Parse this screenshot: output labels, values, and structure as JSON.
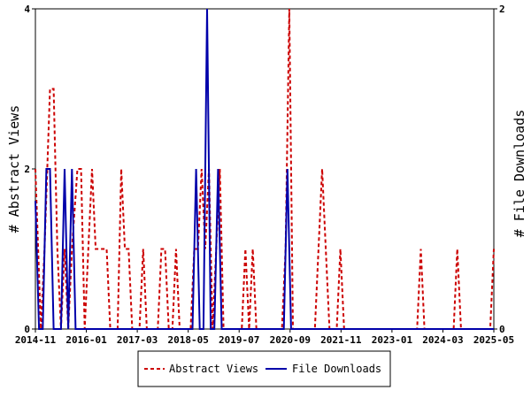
{
  "chart_data": {
    "type": "line",
    "y_left_label": "# Abstract Views",
    "y_right_label": "# File Downloads",
    "y_left_ticks": [
      "0",
      "2",
      "4"
    ],
    "y_right_ticks": [
      "0",
      "2"
    ],
    "ylim_left": [
      0,
      4
    ],
    "ylim_right": [
      0,
      2
    ],
    "x_ticks": [
      "2014-11",
      "2016-01",
      "2017-03",
      "2018-05",
      "2019-07",
      "2020-09",
      "2021-11",
      "2023-01",
      "2024-03",
      "2025-05"
    ],
    "legend_placement": "bottom-center",
    "series": [
      {
        "name": "Abstract Views",
        "axis": "left",
        "color": "#cc0000",
        "style": "dashed",
        "points": [
          [
            0,
            2
          ],
          [
            3,
            0
          ],
          [
            5,
            1
          ],
          [
            8,
            3
          ],
          [
            10,
            3
          ],
          [
            12,
            1
          ],
          [
            14,
            0
          ],
          [
            16,
            1
          ],
          [
            18,
            0
          ],
          [
            20,
            1
          ],
          [
            23,
            2
          ],
          [
            25,
            2
          ],
          [
            27,
            0
          ],
          [
            29,
            1
          ],
          [
            31,
            2
          ],
          [
            33,
            1
          ],
          [
            35,
            1
          ],
          [
            37,
            1
          ],
          [
            39,
            1
          ],
          [
            41,
            0
          ],
          [
            43,
            0
          ],
          [
            45,
            0
          ],
          [
            47,
            2
          ],
          [
            49,
            1
          ],
          [
            51,
            1
          ],
          [
            53,
            0
          ],
          [
            55,
            0
          ],
          [
            57,
            0
          ],
          [
            59,
            1
          ],
          [
            61,
            0
          ],
          [
            63,
            0
          ],
          [
            65,
            0
          ],
          [
            67,
            0
          ],
          [
            69,
            1
          ],
          [
            71,
            1
          ],
          [
            73,
            0
          ],
          [
            75,
            0
          ],
          [
            77,
            1
          ],
          [
            79,
            0
          ],
          [
            81,
            0
          ],
          [
            83,
            0
          ],
          [
            85,
            0
          ],
          [
            87,
            1
          ],
          [
            89,
            1
          ],
          [
            91,
            2
          ],
          [
            93,
            1
          ],
          [
            95,
            2
          ],
          [
            97,
            0
          ],
          [
            99,
            1
          ],
          [
            101,
            2
          ],
          [
            103,
            0
          ],
          [
            105,
            0
          ],
          [
            107,
            0
          ],
          [
            109,
            0
          ],
          [
            111,
            0
          ],
          [
            113,
            0
          ],
          [
            115,
            1
          ],
          [
            117,
            0
          ],
          [
            119,
            1
          ],
          [
            121,
            0
          ],
          [
            123,
            0
          ],
          [
            125,
            0
          ],
          [
            127,
            0
          ],
          [
            129,
            0
          ],
          [
            131,
            0
          ],
          [
            133,
            0
          ],
          [
            135,
            0
          ],
          [
            137,
            1
          ],
          [
            139,
            4
          ],
          [
            141,
            0
          ],
          [
            143,
            0
          ],
          [
            145,
            0
          ],
          [
            147,
            0
          ],
          [
            149,
            0
          ],
          [
            151,
            0
          ],
          [
            153,
            0
          ],
          [
            155,
            1
          ],
          [
            157,
            2
          ],
          [
            159,
            1
          ],
          [
            161,
            0
          ],
          [
            163,
            0
          ],
          [
            165,
            0
          ],
          [
            167,
            1
          ],
          [
            169,
            0
          ],
          [
            171,
            0
          ],
          [
            173,
            0
          ],
          [
            175,
            0
          ],
          [
            177,
            0
          ],
          [
            179,
            0
          ],
          [
            181,
            0
          ],
          [
            183,
            0
          ],
          [
            185,
            0
          ],
          [
            187,
            0
          ],
          [
            189,
            0
          ],
          [
            191,
            0
          ],
          [
            193,
            0
          ],
          [
            195,
            0
          ],
          [
            197,
            0
          ],
          [
            199,
            0
          ],
          [
            201,
            0
          ],
          [
            203,
            0
          ],
          [
            205,
            0
          ],
          [
            207,
            0
          ],
          [
            209,
            0
          ],
          [
            211,
            1
          ],
          [
            213,
            0
          ],
          [
            215,
            0
          ],
          [
            217,
            0
          ],
          [
            219,
            0
          ],
          [
            221,
            0
          ],
          [
            223,
            0
          ],
          [
            225,
            0
          ],
          [
            227,
            0
          ],
          [
            229,
            0
          ],
          [
            231,
            1
          ],
          [
            233,
            0
          ],
          [
            235,
            0
          ],
          [
            237,
            0
          ],
          [
            239,
            0
          ],
          [
            241,
            0
          ],
          [
            243,
            0
          ],
          [
            245,
            0
          ],
          [
            247,
            0
          ],
          [
            249,
            0
          ],
          [
            251,
            1
          ]
        ]
      },
      {
        "name": "File Downloads",
        "axis": "right",
        "color": "#0000aa",
        "style": "solid",
        "points": [
          [
            0,
            0.8
          ],
          [
            2,
            0
          ],
          [
            4,
            0
          ],
          [
            6,
            1
          ],
          [
            8,
            1
          ],
          [
            10,
            0
          ],
          [
            12,
            0
          ],
          [
            14,
            0
          ],
          [
            16,
            1
          ],
          [
            18,
            0
          ],
          [
            20,
            1
          ],
          [
            22,
            0
          ],
          [
            24,
            0
          ],
          [
            26,
            0
          ],
          [
            28,
            0
          ],
          [
            30,
            0
          ],
          [
            32,
            0
          ],
          [
            34,
            0
          ],
          [
            36,
            0
          ],
          [
            38,
            0
          ],
          [
            40,
            0
          ],
          [
            42,
            0
          ],
          [
            44,
            0
          ],
          [
            46,
            0
          ],
          [
            48,
            0
          ],
          [
            50,
            0
          ],
          [
            52,
            0
          ],
          [
            54,
            0
          ],
          [
            56,
            0
          ],
          [
            58,
            0
          ],
          [
            60,
            0
          ],
          [
            62,
            0
          ],
          [
            64,
            0
          ],
          [
            66,
            0
          ],
          [
            68,
            0
          ],
          [
            70,
            0
          ],
          [
            72,
            0
          ],
          [
            74,
            0
          ],
          [
            76,
            0
          ],
          [
            78,
            0
          ],
          [
            80,
            0
          ],
          [
            82,
            0
          ],
          [
            84,
            0
          ],
          [
            86,
            0
          ],
          [
            88,
            1
          ],
          [
            90,
            0
          ],
          [
            92,
            0
          ],
          [
            94,
            2
          ],
          [
            96,
            0
          ],
          [
            98,
            0
          ],
          [
            100,
            1
          ],
          [
            102,
            0
          ],
          [
            104,
            0
          ],
          [
            106,
            0
          ],
          [
            108,
            0
          ],
          [
            110,
            0
          ],
          [
            112,
            0
          ],
          [
            114,
            0
          ],
          [
            116,
            0
          ],
          [
            118,
            0
          ],
          [
            120,
            0
          ],
          [
            122,
            0
          ],
          [
            124,
            0
          ],
          [
            126,
            0
          ],
          [
            128,
            0
          ],
          [
            130,
            0
          ],
          [
            132,
            0
          ],
          [
            134,
            0
          ],
          [
            136,
            0
          ],
          [
            138,
            1
          ],
          [
            140,
            0
          ],
          [
            142,
            0
          ],
          [
            144,
            0
          ],
          [
            146,
            0
          ],
          [
            148,
            0
          ],
          [
            150,
            0
          ],
          [
            152,
            0
          ],
          [
            154,
            0
          ],
          [
            156,
            0
          ],
          [
            158,
            0
          ],
          [
            160,
            0
          ],
          [
            162,
            0
          ],
          [
            164,
            0
          ],
          [
            166,
            0
          ],
          [
            168,
            0
          ],
          [
            170,
            0
          ],
          [
            172,
            0
          ],
          [
            174,
            0
          ],
          [
            176,
            0
          ],
          [
            178,
            0
          ],
          [
            180,
            0
          ],
          [
            182,
            0
          ],
          [
            184,
            0
          ],
          [
            186,
            0
          ],
          [
            188,
            0
          ],
          [
            190,
            0
          ],
          [
            192,
            0
          ],
          [
            194,
            0
          ],
          [
            196,
            0
          ],
          [
            198,
            0
          ],
          [
            200,
            0
          ],
          [
            202,
            0
          ],
          [
            204,
            0
          ],
          [
            206,
            0
          ],
          [
            208,
            0
          ],
          [
            210,
            0
          ],
          [
            212,
            0
          ],
          [
            214,
            0
          ],
          [
            216,
            0
          ],
          [
            218,
            0
          ],
          [
            220,
            0
          ],
          [
            222,
            0
          ],
          [
            224,
            0
          ],
          [
            226,
            0
          ],
          [
            228,
            0
          ],
          [
            230,
            0
          ],
          [
            232,
            0
          ],
          [
            234,
            0
          ],
          [
            236,
            0
          ],
          [
            238,
            0
          ],
          [
            240,
            0
          ],
          [
            242,
            0
          ],
          [
            244,
            0
          ],
          [
            246,
            0
          ],
          [
            248,
            0
          ],
          [
            250,
            0
          ],
          [
            251,
            0
          ]
        ]
      }
    ],
    "x_range": [
      0,
      251
    ]
  }
}
